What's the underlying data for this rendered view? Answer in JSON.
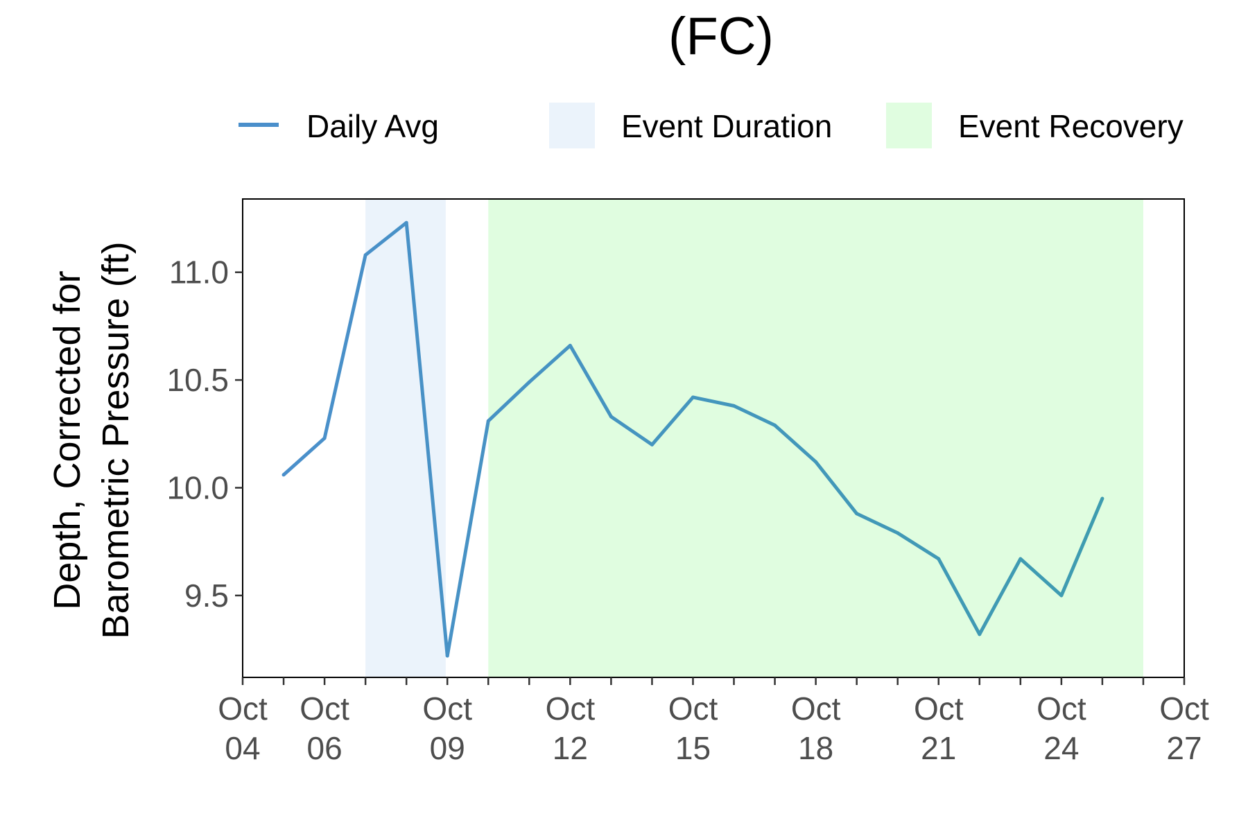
{
  "chart_data": {
    "type": "line",
    "title": "(FC)",
    "ylabel_lines": [
      "Depth, Corrected for",
      "Barometric Pressure (ft)"
    ],
    "xlim": [
      "2024-10-04",
      "2024-10-27"
    ],
    "ylim": [
      9.12,
      11.34
    ],
    "x_ticks": [
      {
        "date": "2024-10-04",
        "label": [
          "Oct",
          "04"
        ]
      },
      {
        "date": "2024-10-06",
        "label": [
          "Oct",
          "06"
        ]
      },
      {
        "date": "2024-10-09",
        "label": [
          "Oct",
          "09"
        ]
      },
      {
        "date": "2024-10-12",
        "label": [
          "Oct",
          "12"
        ]
      },
      {
        "date": "2024-10-15",
        "label": [
          "Oct",
          "15"
        ]
      },
      {
        "date": "2024-10-18",
        "label": [
          "Oct",
          "18"
        ]
      },
      {
        "date": "2024-10-21",
        "label": [
          "Oct",
          "21"
        ]
      },
      {
        "date": "2024-10-24",
        "label": [
          "Oct",
          "24"
        ]
      },
      {
        "date": "2024-10-27",
        "label": [
          "Oct",
          "27"
        ]
      }
    ],
    "y_ticks": [
      {
        "value": 9.5,
        "label": "9.5"
      },
      {
        "value": 10.0,
        "label": "10.0"
      },
      {
        "value": 10.5,
        "label": "10.5"
      },
      {
        "value": 11.0,
        "label": "11.0"
      }
    ],
    "legend": [
      {
        "key": "daily_avg",
        "label": "Daily Avg",
        "kind": "line",
        "color": "#4a8fcb"
      },
      {
        "key": "event_duration",
        "label": "Event Duration",
        "kind": "fill",
        "color": "#ebf3fb"
      },
      {
        "key": "event_recovery",
        "label": "Event Recovery",
        "kind": "fill",
        "color": "#e0fde0"
      }
    ],
    "legend_position": "top",
    "grid": false,
    "bands": [
      {
        "name": "Event Duration",
        "start": "2024-10-07",
        "end": "2024-10-08.96",
        "color": "#ebf3fb"
      },
      {
        "name": "Event Recovery",
        "start": "2024-10-10",
        "end": "2024-10-26",
        "color": "#e0fde0"
      }
    ],
    "series": [
      {
        "name": "Daily Avg",
        "colors": {
          "start": "#4a8fcb",
          "end": "#3e9cb0"
        },
        "points": [
          {
            "x": "2024-10-05",
            "y": 10.06
          },
          {
            "x": "2024-10-06",
            "y": 10.23
          },
          {
            "x": "2024-10-07",
            "y": 11.08
          },
          {
            "x": "2024-10-08",
            "y": 11.23
          },
          {
            "x": "2024-10-09",
            "y": 9.22
          },
          {
            "x": "2024-10-10",
            "y": 10.31
          },
          {
            "x": "2024-10-11",
            "y": 10.49
          },
          {
            "x": "2024-10-12",
            "y": 10.66
          },
          {
            "x": "2024-10-13",
            "y": 10.33
          },
          {
            "x": "2024-10-14",
            "y": 10.2
          },
          {
            "x": "2024-10-15",
            "y": 10.42
          },
          {
            "x": "2024-10-16",
            "y": 10.38
          },
          {
            "x": "2024-10-17",
            "y": 10.29
          },
          {
            "x": "2024-10-18",
            "y": 10.12
          },
          {
            "x": "2024-10-19",
            "y": 9.88
          },
          {
            "x": "2024-10-20",
            "y": 9.79
          },
          {
            "x": "2024-10-21",
            "y": 9.67
          },
          {
            "x": "2024-10-22",
            "y": 9.32
          },
          {
            "x": "2024-10-23",
            "y": 9.67
          },
          {
            "x": "2024-10-24",
            "y": 9.5
          },
          {
            "x": "2024-10-25",
            "y": 9.95
          }
        ]
      }
    ]
  }
}
